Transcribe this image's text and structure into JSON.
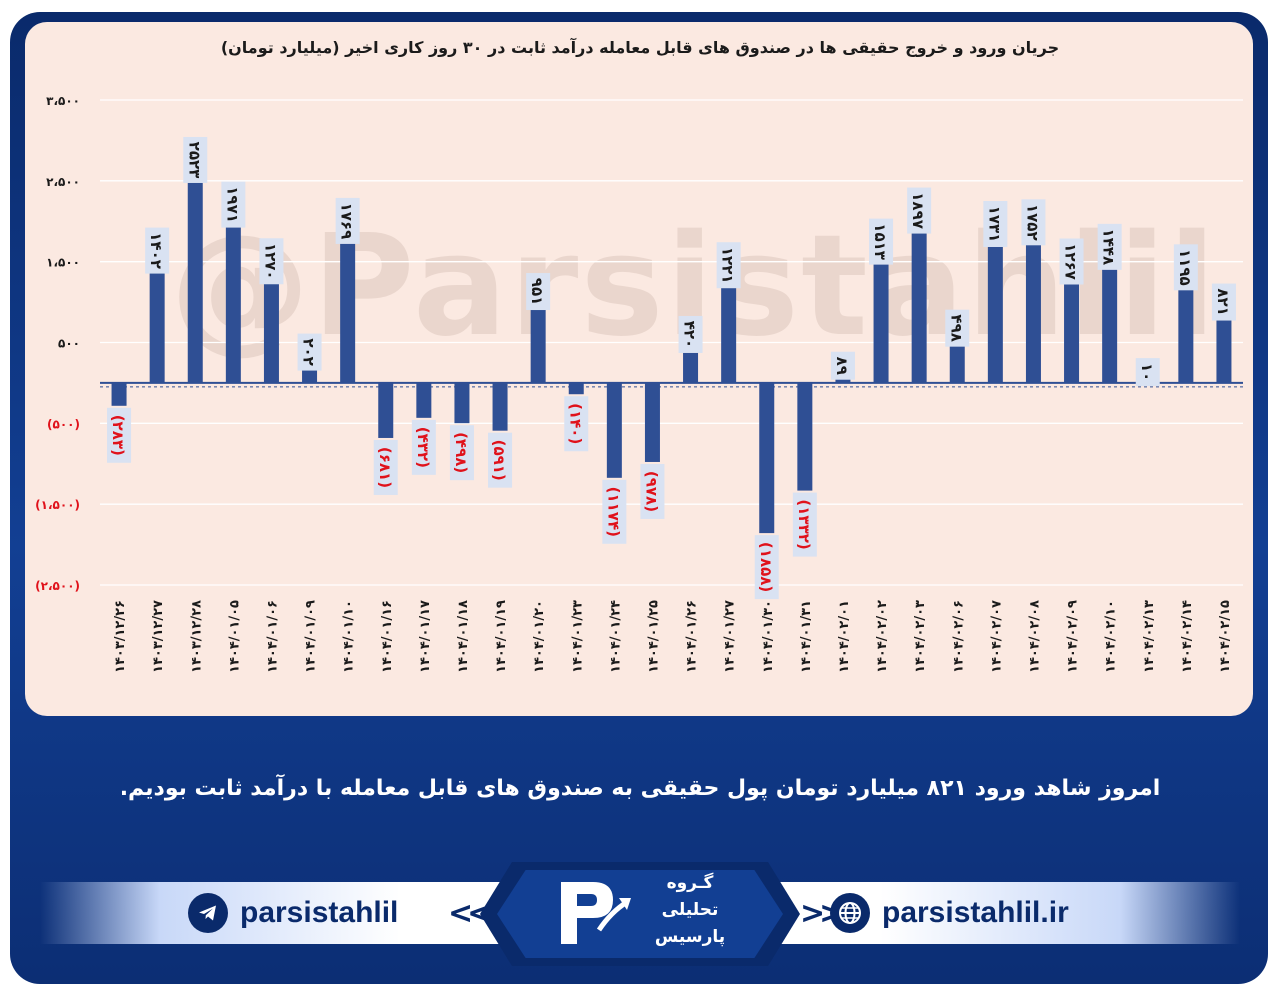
{
  "chart_data": {
    "type": "bar",
    "title": "جریان ورود و خروج حقیقی ها در صندوق های قابل معامله درآمد ثابت در ۳۰ روز کاری اخیر (میلیارد تومان)",
    "categories": [
      "۱۴۰۳/۱۲/۲۶",
      "۱۴۰۳/۱۲/۲۷",
      "۱۴۰۳/۱۲/۲۸",
      "۱۴۰۴/۰۱/۰۵",
      "۱۴۰۴/۰۱/۰۶",
      "۱۴۰۴/۰۱/۰۹",
      "۱۴۰۴/۰۱/۱۰",
      "۱۴۰۴/۰۱/۱۶",
      "۱۴۰۴/۰۱/۱۷",
      "۱۴۰۴/۰۱/۱۸",
      "۱۴۰۴/۰۱/۱۹",
      "۱۴۰۴/۰۱/۲۰",
      "۱۴۰۴/۰۱/۲۳",
      "۱۴۰۴/۰۱/۲۴",
      "۱۴۰۴/۰۱/۲۵",
      "۱۴۰۴/۰۱/۲۶",
      "۱۴۰۴/۰۱/۲۷",
      "۱۴۰۴/۰۱/۳۰",
      "۱۴۰۴/۰۱/۳۱",
      "۱۴۰۴/۰۲/۰۱",
      "۱۴۰۴/۰۲/۰۲",
      "۱۴۰۴/۰۲/۰۳",
      "۱۴۰۴/۰۲/۰۶",
      "۱۴۰۴/۰۲/۰۷",
      "۱۴۰۴/۰۲/۰۸",
      "۱۴۰۴/۰۲/۰۹",
      "۱۴۰۴/۰۲/۱۰",
      "۱۴۰۴/۰۲/۱۳",
      "۱۴۰۴/۰۲/۱۴",
      "۱۴۰۴/۰۲/۱۵"
    ],
    "values": [
      -283,
      1402,
      2523,
      1971,
      1270,
      202,
      1769,
      -681,
      -432,
      -498,
      -591,
      951,
      -140,
      -1174,
      -978,
      420,
      1221,
      -1858,
      -1332,
      89,
      1513,
      1897,
      498,
      1731,
      1752,
      1267,
      1448,
      10,
      1195,
      821
    ],
    "data_labels": [
      "(۲۸۳)",
      "۱۴۰۲",
      "۲۵۲۳",
      "۱۹۷۱",
      "۱۲۷۰",
      "۲۰۲",
      "۱۷۶۹",
      "(۶۸۱)",
      "(۴۳۲)",
      "(۴۹۸)",
      "(۵۹۱)",
      "۹۵۱",
      "(۱۴۰)",
      "(۱۱۷۴)",
      "(۹۷۸)",
      "۴۲۰",
      "۱۲۲۱",
      "(۱۸۵۸)",
      "(۱۳۳۲)",
      "۸۹",
      "۱۵۱۳",
      "۱۸۹۷",
      "۴۹۸",
      "۱۷۳۱",
      "۱۷۵۲",
      "۱۲۶۷",
      "۱۴۴۸",
      "۱۰",
      "۱۱۹۵",
      "۸۲۱"
    ],
    "yticks": [
      3500,
      2500,
      1500,
      500,
      -500,
      -1500,
      -2500
    ],
    "ytick_labels": [
      "۳،۵۰۰",
      "۲،۵۰۰",
      "۱،۵۰۰",
      "۵۰۰",
      "(۵۰۰)",
      "(۱،۵۰۰)",
      "(۲،۵۰۰)"
    ],
    "ylim": [
      -2500,
      3500
    ],
    "grid": true,
    "colors": {
      "bar": "#2f4f94",
      "positive_label": "#1a1a1a",
      "negative_label": "#e0121b",
      "label_box": "#d9e2f2",
      "background": "#fbe9e1"
    }
  },
  "watermark": "@Parsistahlil",
  "summary_text": "امروز شاهد ورود ۸۲۱ میلیارد تومان پول حقیقی به صندوق های قابل معامله با درآمد ثابت بودیم.",
  "footer": {
    "telegram_handle": "parsistahlil",
    "website": "parsistahlil.ir",
    "brand_lines": [
      "گـروه",
      "تحلیلی",
      "پارسیس"
    ]
  }
}
